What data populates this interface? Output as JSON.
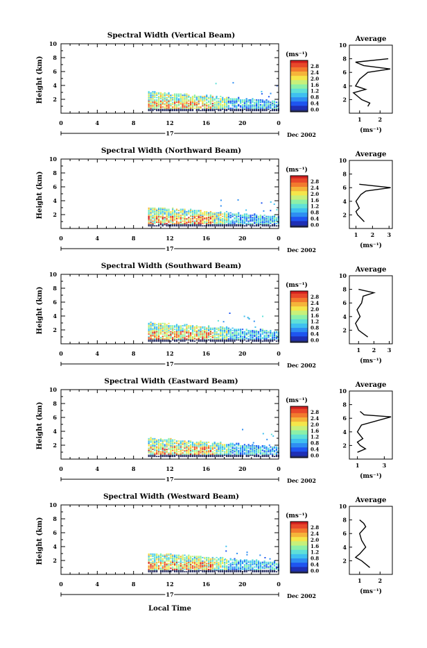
{
  "figure": {
    "xlabel": "Local Time",
    "ylabel": "Height (km)",
    "colorbar_unit": "(ms⁻¹)",
    "colorbar_ticks": [
      "2.8",
      "2.4",
      "2.0",
      "1.6",
      "1.2",
      "0.8",
      "0.4",
      "0.0"
    ],
    "date_label": "Dec 2002",
    "day_label": "17",
    "x_ticks": [
      "0",
      "4",
      "8",
      "12",
      "16",
      "20",
      "0"
    ],
    "y_ticks": [
      "2",
      "4",
      "6",
      "8",
      "10"
    ],
    "avg_title": "Average",
    "avg_xlabel": "(ms⁻¹)"
  },
  "chart_data": [
    {
      "type": "heatmap",
      "title": "Spectral Width (Vertical Beam)",
      "xlabel": "Local Time",
      "ylabel": "Height (km)",
      "xlim": [
        0,
        24
      ],
      "ylim": [
        0,
        10
      ],
      "colorbar": {
        "label": "(ms⁻¹)",
        "range": [
          0.0,
          3.0
        ]
      },
      "data_extent": {
        "time_start": 9.6,
        "time_end": 24,
        "height_top": 3.0
      },
      "avg_profile": {
        "title": "Average",
        "xlabel": "(ms⁻¹)",
        "xticks": [
          "1",
          "2"
        ],
        "xlim": [
          0.5,
          2.6
        ],
        "points": [
          [
            1.4,
            1.0
          ],
          [
            1.5,
            1.5
          ],
          [
            1.1,
            2.0
          ],
          [
            0.9,
            2.5
          ],
          [
            0.7,
            3.0
          ],
          [
            1.3,
            3.5
          ],
          [
            0.8,
            4.0
          ],
          [
            1.0,
            5.0
          ],
          [
            1.4,
            6.0
          ],
          [
            2.5,
            6.5
          ],
          [
            1.2,
            7.0
          ],
          [
            0.8,
            7.5
          ],
          [
            2.4,
            8.0
          ]
        ]
      }
    },
    {
      "type": "heatmap",
      "title": "Spectral Width (Northward Beam)",
      "xlabel": "Local Time",
      "ylabel": "Height (km)",
      "xlim": [
        0,
        24
      ],
      "ylim": [
        0,
        10
      ],
      "colorbar": {
        "label": "(ms⁻¹)",
        "range": [
          0.0,
          3.0
        ]
      },
      "data_extent": {
        "time_start": 9.6,
        "time_end": 24,
        "height_top": 3.0
      },
      "avg_profile": {
        "title": "Average",
        "xlabel": "(ms⁻¹)",
        "xticks": [
          "1",
          "2",
          "3"
        ],
        "xlim": [
          0.6,
          3.2
        ],
        "points": [
          [
            1.5,
            1.0
          ],
          [
            1.3,
            1.5
          ],
          [
            1.1,
            2.0
          ],
          [
            1.0,
            2.5
          ],
          [
            1.2,
            3.0
          ],
          [
            1.0,
            4.0
          ],
          [
            1.3,
            5.0
          ],
          [
            1.6,
            5.5
          ],
          [
            3.1,
            6.0
          ],
          [
            1.2,
            6.5
          ]
        ]
      }
    },
    {
      "type": "heatmap",
      "title": "Spectral Width (Southward Beam)",
      "xlabel": "Local Time",
      "ylabel": "Height (km)",
      "xlim": [
        0,
        24
      ],
      "ylim": [
        0,
        10
      ],
      "colorbar": {
        "label": "(ms⁻¹)",
        "range": [
          0.0,
          3.0
        ]
      },
      "data_extent": {
        "time_start": 9.6,
        "time_end": 24,
        "height_top": 3.0
      },
      "avg_profile": {
        "title": "Average",
        "xlabel": "(ms⁻¹)",
        "xticks": [
          "1",
          "2",
          "3"
        ],
        "xlim": [
          0.4,
          3.2
        ],
        "points": [
          [
            1.6,
            1.0
          ],
          [
            1.3,
            1.5
          ],
          [
            1.0,
            2.0
          ],
          [
            0.9,
            2.5
          ],
          [
            0.8,
            3.0
          ],
          [
            1.1,
            4.0
          ],
          [
            0.9,
            5.0
          ],
          [
            1.2,
            6.0
          ],
          [
            1.3,
            7.0
          ],
          [
            2.0,
            7.5
          ],
          [
            1.0,
            8.0
          ]
        ]
      }
    },
    {
      "type": "heatmap",
      "title": "Spectral Width (Eastward Beam)",
      "xlabel": "Local Time",
      "ylabel": "Height (km)",
      "xlim": [
        0,
        24
      ],
      "ylim": [
        0,
        10
      ],
      "colorbar": {
        "label": "(ms⁻¹)",
        "range": [
          0.0,
          3.0
        ]
      },
      "data_extent": {
        "time_start": 9.6,
        "time_end": 24,
        "height_top": 3.0
      },
      "avg_profile": {
        "title": "Average",
        "xlabel": "(ms⁻¹)",
        "xticks": [
          "1",
          "3"
        ],
        "xlim": [
          0.4,
          3.6
        ],
        "points": [
          [
            1.0,
            1.0
          ],
          [
            1.6,
            1.5
          ],
          [
            1.2,
            2.0
          ],
          [
            1.0,
            2.5
          ],
          [
            1.4,
            3.0
          ],
          [
            1.0,
            4.0
          ],
          [
            1.3,
            5.0
          ],
          [
            3.5,
            6.2
          ],
          [
            1.5,
            6.5
          ],
          [
            1.2,
            7.0
          ]
        ]
      }
    },
    {
      "type": "heatmap",
      "title": "Spectral Width (Westward Beam)",
      "xlabel": "Local Time",
      "ylabel": "Height (km)",
      "xlim": [
        0,
        24
      ],
      "ylim": [
        0,
        10
      ],
      "colorbar": {
        "label": "(ms⁻¹)",
        "range": [
          0.0,
          3.0
        ]
      },
      "data_extent": {
        "time_start": 9.6,
        "time_end": 24,
        "height_top": 3.0
      },
      "avg_profile": {
        "title": "Average",
        "xlabel": "(ms⁻¹)",
        "xticks": [
          "1",
          "2"
        ],
        "xlim": [
          0.5,
          2.6
        ],
        "points": [
          [
            1.5,
            1.0
          ],
          [
            1.3,
            1.5
          ],
          [
            1.1,
            2.0
          ],
          [
            0.8,
            2.5
          ],
          [
            1.0,
            3.0
          ],
          [
            1.3,
            4.0
          ],
          [
            1.1,
            5.0
          ],
          [
            1.0,
            6.0
          ],
          [
            1.3,
            7.0
          ],
          [
            1.2,
            7.5
          ],
          [
            1.0,
            8.0
          ]
        ]
      }
    }
  ]
}
